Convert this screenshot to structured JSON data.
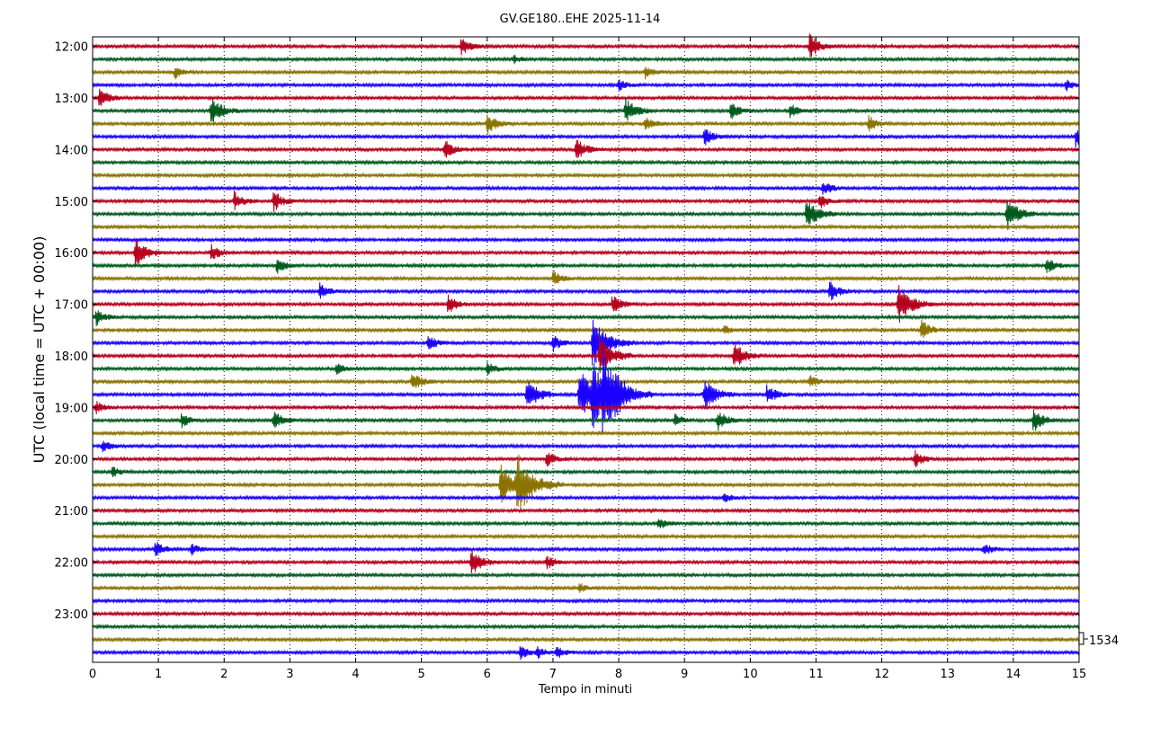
{
  "chart_data": {
    "type": "line",
    "title": "GV.GE180..EHE 2025-11-14",
    "xlabel": "Tempo in minuti",
    "ylabel": "UTC (local time = UTC + 00:00)",
    "xlim": [
      0,
      15
    ],
    "x_ticks": [
      "0",
      "1",
      "2",
      "3",
      "4",
      "5",
      "6",
      "7",
      "8",
      "9",
      "10",
      "11",
      "12",
      "13",
      "14",
      "15"
    ],
    "y_tick_labels": [
      "12:00",
      "13:00",
      "14:00",
      "15:00",
      "16:00",
      "17:00",
      "18:00",
      "19:00",
      "20:00",
      "21:00",
      "22:00",
      "23:00"
    ],
    "trace_start": "12:00",
    "trace_minutes": 15,
    "trace_count": 48,
    "trace_colors": [
      "#b5001e",
      "#005a1e",
      "#8a7300",
      "#1a00ff"
    ],
    "scale_label": "1534",
    "grid": "vertical-dotted",
    "events": [
      {
        "trace": 0,
        "x": 5.6,
        "a": 2.2
      },
      {
        "trace": 0,
        "x": 10.9,
        "a": 3
      },
      {
        "trace": 1,
        "x": 6.4,
        "a": 1
      },
      {
        "trace": 2,
        "x": 1.25,
        "a": 1.8
      },
      {
        "trace": 2,
        "x": 8.4,
        "a": 1.6
      },
      {
        "trace": 3,
        "x": 8.0,
        "a": 1.6
      },
      {
        "trace": 3,
        "x": 14.8,
        "a": 1.4
      },
      {
        "trace": 4,
        "x": 0.1,
        "a": 2.5
      },
      {
        "trace": 5,
        "x": 1.8,
        "a": 3.5
      },
      {
        "trace": 5,
        "x": 8.1,
        "a": 3.2
      },
      {
        "trace": 5,
        "x": 9.7,
        "a": 2.4
      },
      {
        "trace": 5,
        "x": 10.6,
        "a": 2
      },
      {
        "trace": 6,
        "x": 6.0,
        "a": 2.6
      },
      {
        "trace": 6,
        "x": 8.4,
        "a": 2
      },
      {
        "trace": 6,
        "x": 11.8,
        "a": 2
      },
      {
        "trace": 7,
        "x": 9.3,
        "a": 2.2
      },
      {
        "trace": 7,
        "x": 14.95,
        "a": 2.4
      },
      {
        "trace": 8,
        "x": 5.35,
        "a": 2.4
      },
      {
        "trace": 8,
        "x": 7.35,
        "a": 2.8
      },
      {
        "trace": 11,
        "x": 11.1,
        "a": 2
      },
      {
        "trace": 12,
        "x": 2.15,
        "a": 2.4
      },
      {
        "trace": 12,
        "x": 2.75,
        "a": 2.6
      },
      {
        "trace": 12,
        "x": 11.05,
        "a": 2
      },
      {
        "trace": 13,
        "x": 10.85,
        "a": 4
      },
      {
        "trace": 13,
        "x": 13.9,
        "a": 4
      },
      {
        "trace": 16,
        "x": 0.65,
        "a": 3.5
      },
      {
        "trace": 16,
        "x": 1.8,
        "a": 2.2
      },
      {
        "trace": 17,
        "x": 2.8,
        "a": 2
      },
      {
        "trace": 17,
        "x": 14.5,
        "a": 2
      },
      {
        "trace": 18,
        "x": 7.0,
        "a": 2
      },
      {
        "trace": 19,
        "x": 3.45,
        "a": 2
      },
      {
        "trace": 19,
        "x": 11.2,
        "a": 2.6
      },
      {
        "trace": 20,
        "x": 5.4,
        "a": 2.4
      },
      {
        "trace": 20,
        "x": 7.9,
        "a": 2.4
      },
      {
        "trace": 20,
        "x": 12.25,
        "a": 5
      },
      {
        "trace": 21,
        "x": 0.05,
        "a": 2.2
      },
      {
        "trace": 22,
        "x": 9.6,
        "a": 1.2
      },
      {
        "trace": 22,
        "x": 12.6,
        "a": 2.6
      },
      {
        "trace": 23,
        "x": 5.1,
        "a": 2
      },
      {
        "trace": 23,
        "x": 7.0,
        "a": 2
      },
      {
        "trace": 23,
        "x": 7.6,
        "a": 6
      },
      {
        "trace": 24,
        "x": 7.7,
        "a": 5
      },
      {
        "trace": 24,
        "x": 9.75,
        "a": 3.4
      },
      {
        "trace": 25,
        "x": 3.7,
        "a": 1.6
      },
      {
        "trace": 25,
        "x": 6.0,
        "a": 1.8
      },
      {
        "trace": 26,
        "x": 4.85,
        "a": 2.6
      },
      {
        "trace": 26,
        "x": 10.9,
        "a": 1.6
      },
      {
        "trace": 27,
        "x": 6.6,
        "a": 4
      },
      {
        "trace": 27,
        "x": 7.4,
        "a": 7
      },
      {
        "trace": 27,
        "x": 7.6,
        "a": 6
      },
      {
        "trace": 27,
        "x": 7.75,
        "a": 8
      },
      {
        "trace": 27,
        "x": 9.3,
        "a": 4
      },
      {
        "trace": 27,
        "x": 10.25,
        "a": 2.6
      },
      {
        "trace": 28,
        "x": 0.05,
        "a": 1.6
      },
      {
        "trace": 29,
        "x": 1.35,
        "a": 1.8
      },
      {
        "trace": 29,
        "x": 2.75,
        "a": 2.4
      },
      {
        "trace": 29,
        "x": 8.85,
        "a": 1.6
      },
      {
        "trace": 29,
        "x": 9.5,
        "a": 2.6
      },
      {
        "trace": 29,
        "x": 14.3,
        "a": 3
      },
      {
        "trace": 31,
        "x": 0.15,
        "a": 1.6
      },
      {
        "trace": 32,
        "x": 6.9,
        "a": 2
      },
      {
        "trace": 32,
        "x": 12.5,
        "a": 2.2
      },
      {
        "trace": 33,
        "x": 0.3,
        "a": 1.4
      },
      {
        "trace": 34,
        "x": 6.2,
        "a": 5
      },
      {
        "trace": 34,
        "x": 6.45,
        "a": 7
      },
      {
        "trace": 35,
        "x": 9.6,
        "a": 1.2
      },
      {
        "trace": 37,
        "x": 8.6,
        "a": 1.6
      },
      {
        "trace": 39,
        "x": 0.95,
        "a": 2.2
      },
      {
        "trace": 39,
        "x": 1.5,
        "a": 1.4
      },
      {
        "trace": 39,
        "x": 13.55,
        "a": 1.6
      },
      {
        "trace": 40,
        "x": 5.75,
        "a": 3.4
      },
      {
        "trace": 40,
        "x": 6.9,
        "a": 1.8
      },
      {
        "trace": 42,
        "x": 7.4,
        "a": 1.2
      },
      {
        "trace": 47,
        "x": 6.5,
        "a": 2
      },
      {
        "trace": 47,
        "x": 6.75,
        "a": 1.6
      },
      {
        "trace": 47,
        "x": 7.05,
        "a": 1.6
      }
    ]
  }
}
